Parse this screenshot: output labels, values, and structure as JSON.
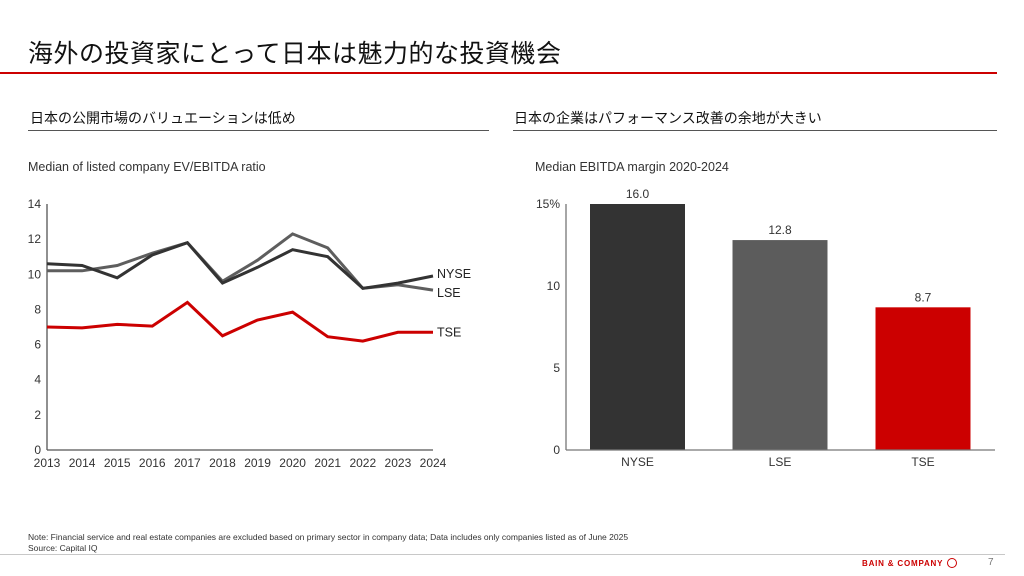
{
  "page": {
    "title": "海外の投資家にとって日本は魅力的な投資機会",
    "accent_color": "#cc0000",
    "page_number": "7",
    "brand": "BAIN & COMPANY",
    "brand_icon": "bain-circle-logo-icon"
  },
  "sections": {
    "left": {
      "title": "日本の公開市場のバリュエーションは低め"
    },
    "right": {
      "title": "日本の企業はパフォーマンス改善の余地が大きい"
    }
  },
  "footer": {
    "note": "Note: Financial service and real estate companies are excluded based on primary sector in company data; Data includes only companies listed as of June 2025",
    "source": "Source: Capital IQ"
  },
  "chart_data": [
    {
      "type": "line",
      "title": "Median of listed company EV/EBITDA ratio",
      "xlabel": "",
      "ylabel": "",
      "x": [
        "2013",
        "2014",
        "2015",
        "2016",
        "2017",
        "2018",
        "2019",
        "2020",
        "2021",
        "2022",
        "2023",
        "2024"
      ],
      "ylim": [
        0,
        14
      ],
      "yticks": [
        0,
        2,
        4,
        6,
        8,
        10,
        12,
        14
      ],
      "grid": false,
      "legend": "direct labels at right end of lines",
      "series": [
        {
          "name": "NYSE",
          "color": "#333333",
          "values": [
            10.6,
            10.5,
            9.8,
            11.1,
            11.8,
            9.5,
            10.4,
            11.4,
            11.0,
            9.2,
            9.5,
            9.9
          ]
        },
        {
          "name": "LSE",
          "color": "#5e5e5e",
          "values": [
            10.2,
            10.2,
            10.5,
            11.2,
            11.8,
            9.6,
            10.8,
            12.3,
            11.5,
            9.2,
            9.4,
            9.1
          ]
        },
        {
          "name": "TSE",
          "color": "#cc0000",
          "values": [
            7.0,
            6.95,
            7.15,
            7.05,
            8.4,
            6.5,
            7.4,
            7.85,
            6.45,
            6.2,
            6.7,
            6.7
          ]
        }
      ]
    },
    {
      "type": "bar",
      "title": "Median EBITDA margin 2020-2024",
      "xlabel": "",
      "ylabel": "",
      "categories": [
        "NYSE",
        "LSE",
        "TSE"
      ],
      "values": [
        16.0,
        12.8,
        8.7
      ],
      "data_labels": [
        "16.0",
        "12.8",
        "8.7"
      ],
      "colors": [
        "#333333",
        "#5c5c5c",
        "#cc0000"
      ],
      "ylim": [
        0,
        15
      ],
      "yticks": [
        0,
        5,
        10,
        15
      ],
      "ytick_labels": [
        "0",
        "5",
        "10",
        "15%"
      ],
      "grid": false,
      "note": "NYSE bar truncated at axis maximum (15%)"
    }
  ]
}
